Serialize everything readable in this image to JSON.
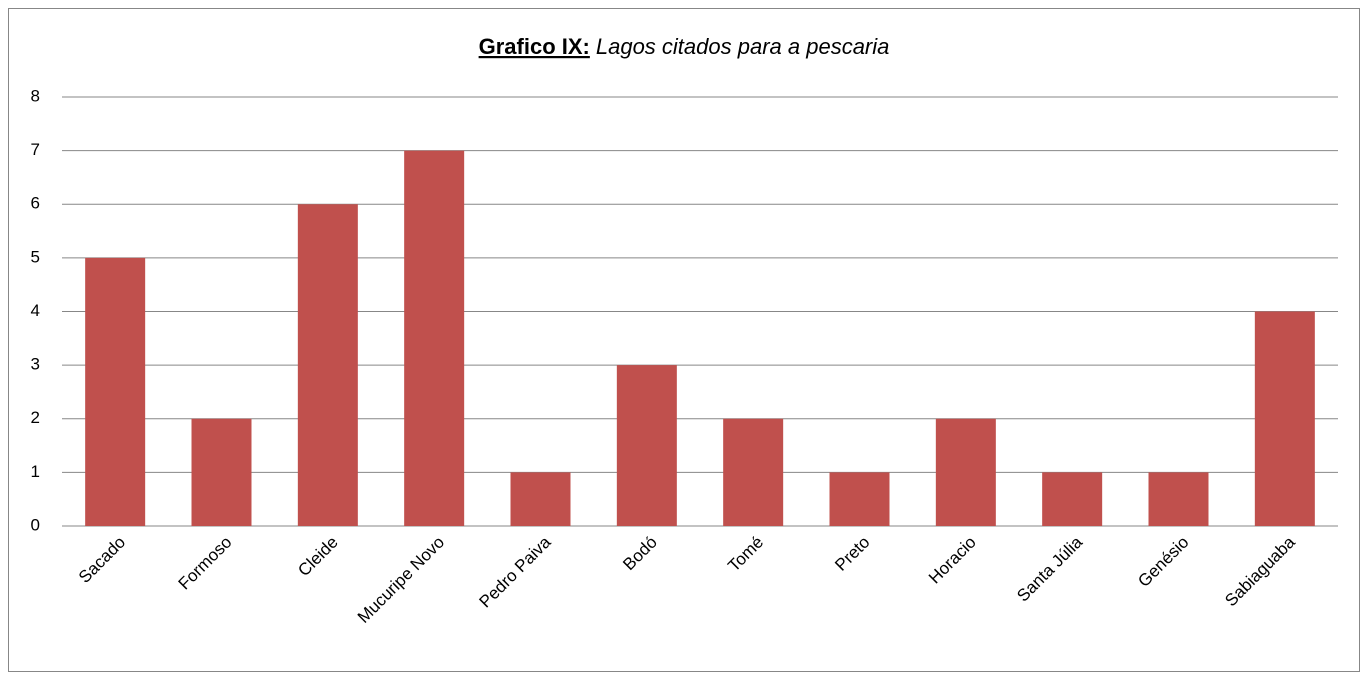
{
  "chart_data": {
    "type": "bar",
    "title_label": "Grafico IX:",
    "title": "Lagos citados para a pescaria",
    "categories": [
      "Sacado",
      "Formoso",
      "Cleide",
      "Mucuripe Novo",
      "Pedro Paiva",
      "Bodó",
      "Tomé",
      "Preto",
      "Horacio",
      "Santa Júlia",
      "Genésio",
      "Sabiaguaba"
    ],
    "values": [
      5,
      2,
      6,
      7,
      1,
      3,
      2,
      1,
      2,
      1,
      1,
      4
    ],
    "color": "#c0504d",
    "ylim": [
      0,
      8
    ],
    "yticks": [
      0,
      1,
      2,
      3,
      4,
      5,
      6,
      7,
      8
    ],
    "grid": true
  }
}
